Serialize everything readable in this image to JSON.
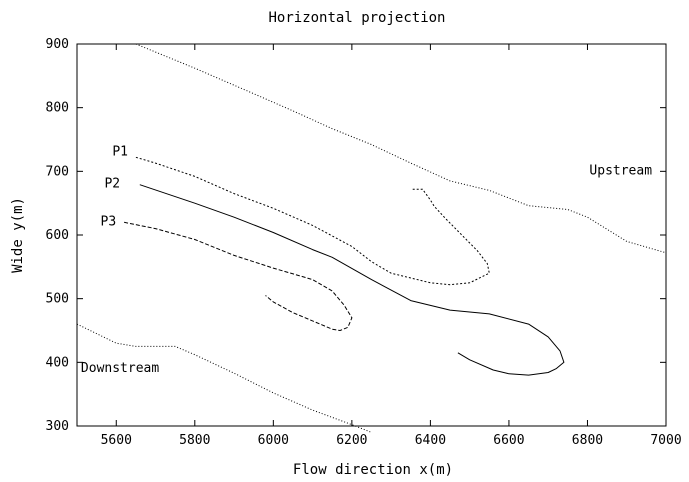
{
  "chart_data": {
    "type": "line",
    "title": "Horizontal projection",
    "xlabel": "Flow direction x(m)",
    "ylabel": "Wide y(m)",
    "xlim": [
      5500,
      7000
    ],
    "ylim": [
      300,
      900
    ],
    "x_ticks": [
      5600,
      5800,
      6000,
      6200,
      6400,
      6600,
      6800,
      7000
    ],
    "y_ticks": [
      300,
      400,
      500,
      600,
      700,
      800,
      900
    ],
    "grid": false,
    "legend": "none",
    "annotations": [
      {
        "text": "P1",
        "x": 5590,
        "y": 725
      },
      {
        "text": "P2",
        "x": 5570,
        "y": 675
      },
      {
        "text": "P3",
        "x": 5560,
        "y": 615
      },
      {
        "text": "Upstream",
        "x": 6805,
        "y": 695
      },
      {
        "text": "Downstream",
        "x": 5510,
        "y": 385
      }
    ],
    "series": [
      {
        "style": "dotted",
        "points": [
          [
            5650,
            900
          ],
          [
            5800,
            862
          ],
          [
            5950,
            822
          ],
          [
            6050,
            795
          ],
          [
            6150,
            767
          ],
          [
            6250,
            742
          ],
          [
            6350,
            713
          ],
          [
            6450,
            685
          ],
          [
            6550,
            670
          ],
          [
            6650,
            646
          ],
          [
            6750,
            640
          ],
          [
            6800,
            628
          ],
          [
            6900,
            590
          ],
          [
            7000,
            572
          ]
        ]
      },
      {
        "style": "dotted",
        "points": [
          [
            5500,
            460
          ],
          [
            5600,
            430
          ],
          [
            5650,
            425
          ],
          [
            5750,
            425
          ],
          [
            5800,
            412
          ],
          [
            5900,
            383
          ],
          [
            6000,
            352
          ],
          [
            6100,
            325
          ],
          [
            6200,
            302
          ],
          [
            6250,
            290
          ]
        ]
      },
      {
        "style": "short-dash",
        "points": [
          [
            5650,
            722
          ],
          [
            5700,
            713
          ],
          [
            5800,
            692
          ],
          [
            5900,
            665
          ],
          [
            6000,
            642
          ],
          [
            6100,
            615
          ],
          [
            6200,
            582
          ],
          [
            6250,
            558
          ],
          [
            6300,
            540
          ],
          [
            6400,
            525
          ],
          [
            6450,
            522
          ],
          [
            6500,
            525
          ],
          [
            6550,
            540
          ],
          [
            6545,
            555
          ],
          [
            6520,
            575
          ],
          [
            6480,
            600
          ],
          [
            6440,
            625
          ],
          [
            6410,
            645
          ],
          [
            6400,
            655
          ],
          [
            6380,
            672
          ],
          [
            6350,
            672
          ]
        ]
      },
      {
        "style": "solid",
        "points": [
          [
            5660,
            679
          ],
          [
            5800,
            650
          ],
          [
            5900,
            628
          ],
          [
            6000,
            604
          ],
          [
            6100,
            577
          ],
          [
            6150,
            565
          ],
          [
            6250,
            530
          ],
          [
            6350,
            497
          ],
          [
            6450,
            482
          ],
          [
            6550,
            476
          ],
          [
            6650,
            460
          ],
          [
            6700,
            440
          ],
          [
            6730,
            418
          ],
          [
            6740,
            400
          ],
          [
            6720,
            390
          ],
          [
            6700,
            384
          ],
          [
            6650,
            380
          ],
          [
            6600,
            382
          ],
          [
            6560,
            388
          ],
          [
            6500,
            404
          ],
          [
            6470,
            415
          ]
        ]
      },
      {
        "style": "dashed",
        "points": [
          [
            5620,
            620
          ],
          [
            5700,
            610
          ],
          [
            5800,
            593
          ],
          [
            5900,
            568
          ],
          [
            6000,
            548
          ],
          [
            6100,
            530
          ],
          [
            6150,
            512
          ],
          [
            6180,
            490
          ],
          [
            6200,
            470
          ],
          [
            6190,
            455
          ],
          [
            6170,
            450
          ],
          [
            6150,
            452
          ],
          [
            6100,
            465
          ],
          [
            6050,
            478
          ],
          [
            6000,
            495
          ],
          [
            5980,
            505
          ]
        ]
      }
    ]
  }
}
